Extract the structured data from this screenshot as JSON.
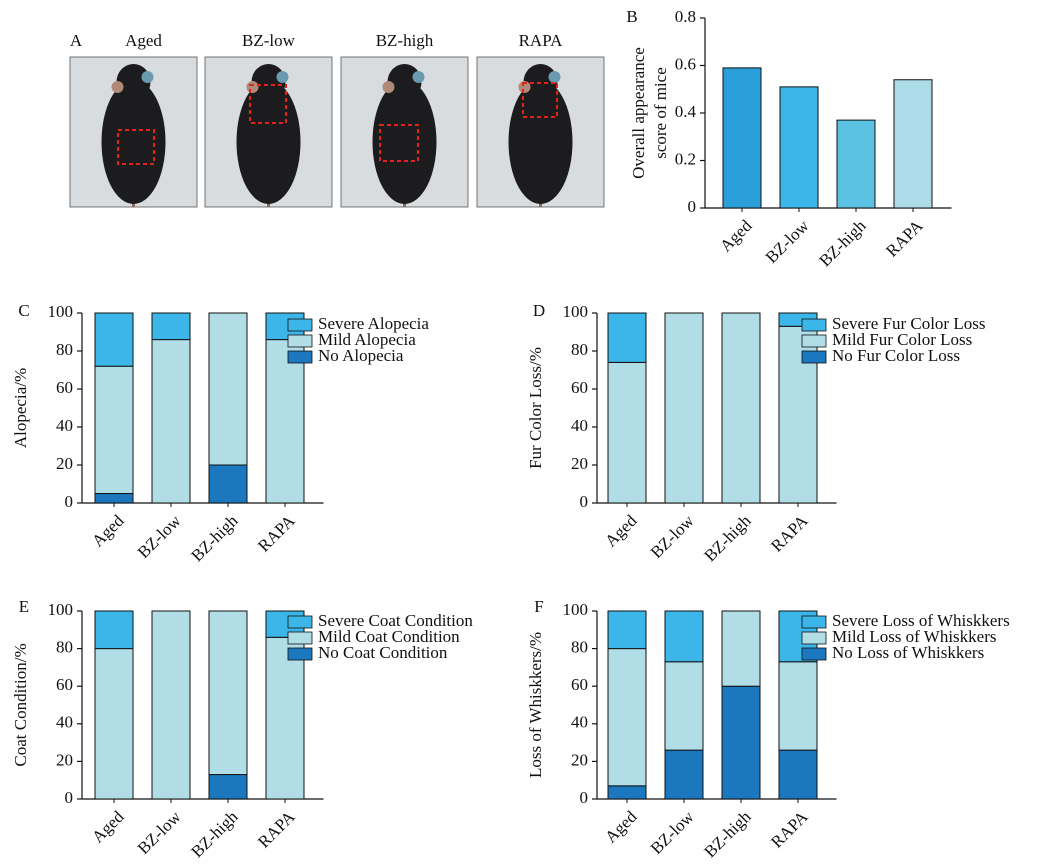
{
  "chart_data": [
    {
      "type": "image",
      "label": "A",
      "categories": [
        "Aged",
        "BZ-low",
        "BZ-high",
        "RAPA"
      ]
    },
    {
      "type": "bar",
      "label": "B",
      "ylabel": [
        "Overall appearance",
        "score of mice"
      ],
      "categories": [
        "Aged",
        "BZ-low",
        "BZ-high",
        "RAPA"
      ],
      "values": [
        0.59,
        0.51,
        0.37,
        0.54
      ],
      "colors": [
        "#2b9fd9",
        "#3cb6e9",
        "#5cc2e4",
        "#acdce7"
      ],
      "ylim": [
        0,
        0.8
      ],
      "yticks": [
        0,
        0.2,
        0.4,
        0.6,
        0.8
      ]
    },
    {
      "type": "stacked_bar",
      "label": "C",
      "ylabel": "Alopecia/%",
      "categories": [
        "Aged",
        "BZ-low",
        "BZ-high",
        "RAPA"
      ],
      "series": [
        {
          "name": "Severe Alopecia",
          "color": "#3cb6e9",
          "values": [
            28,
            14,
            0,
            14
          ]
        },
        {
          "name": "Mild Alopecia",
          "color": "#b1dde7",
          "values": [
            67,
            86,
            80,
            86
          ]
        },
        {
          "name": "No Alopecia",
          "color": "#1b78be",
          "values": [
            5,
            0,
            20,
            0
          ]
        }
      ],
      "ylim": [
        0,
        100
      ],
      "yticks": [
        0,
        20,
        40,
        60,
        80,
        100
      ]
    },
    {
      "type": "stacked_bar",
      "label": "D",
      "ylabel": "Fur Color Loss/%",
      "categories": [
        "Aged",
        "BZ-low",
        "BZ-high",
        "RAPA"
      ],
      "series": [
        {
          "name": "Severe Fur Color Loss",
          "color": "#3cb6e9",
          "values": [
            26,
            0,
            0,
            7
          ]
        },
        {
          "name": "Mild Fur Color Loss",
          "color": "#b1dde7",
          "values": [
            74,
            100,
            100,
            93
          ]
        },
        {
          "name": "No Fur Color Loss",
          "color": "#1b78be",
          "values": [
            0,
            0,
            0,
            0
          ]
        }
      ],
      "ylim": [
        0,
        100
      ],
      "yticks": [
        0,
        20,
        40,
        60,
        80,
        100
      ]
    },
    {
      "type": "stacked_bar",
      "label": "E",
      "ylabel": "Coat Condition/%",
      "categories": [
        "Aged",
        "BZ-low",
        "BZ-high",
        "RAPA"
      ],
      "series": [
        {
          "name": "Severe Coat Condition",
          "color": "#3cb6e9",
          "values": [
            20,
            0,
            0,
            14
          ]
        },
        {
          "name": "Mild Coat Condition",
          "color": "#b1dde7",
          "values": [
            80,
            100,
            87,
            86
          ]
        },
        {
          "name": "No Coat Condition",
          "color": "#1b78be",
          "values": [
            0,
            0,
            13,
            0
          ]
        }
      ],
      "ylim": [
        0,
        100
      ],
      "yticks": [
        0,
        20,
        40,
        60,
        80,
        100
      ]
    },
    {
      "type": "stacked_bar",
      "label": "F",
      "ylabel": "Loss of Whiskkers/%",
      "categories": [
        "Aged",
        "BZ-low",
        "BZ-high",
        "RAPA"
      ],
      "series": [
        {
          "name": "Severe Loss of Whiskkers",
          "color": "#3cb6e9",
          "values": [
            20,
            27,
            0,
            27
          ]
        },
        {
          "name": "Mild Loss of Whiskkers",
          "color": "#b1dde7",
          "values": [
            73,
            47,
            40,
            47
          ]
        },
        {
          "name": "No Loss of Whiskkers",
          "color": "#1b78be",
          "values": [
            7,
            26,
            60,
            26
          ]
        }
      ],
      "ylim": [
        0,
        100
      ],
      "yticks": [
        0,
        20,
        40,
        60,
        80,
        100
      ]
    }
  ]
}
